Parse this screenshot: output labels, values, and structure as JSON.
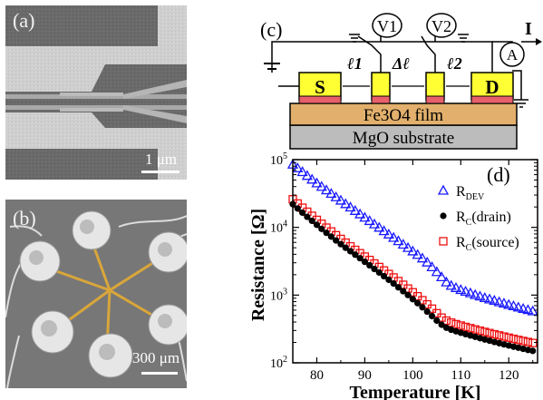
{
  "panels": {
    "a": {
      "label": "(a)",
      "scale_label": "1 μm"
    },
    "b": {
      "label": "(b)",
      "scale_label": "300 μm"
    },
    "c": {
      "label": "(c)",
      "voltmeter_1": "V1",
      "voltmeter_2": "V2",
      "ammeter": "A",
      "current_label": "I",
      "source_label": "S",
      "drain_label": "D",
      "l1_label": "ℓ1",
      "dl_label": "Δℓ",
      "l2_label": "ℓ2",
      "film_label": "Fe3O4 film",
      "substrate_label": "MgO substrate"
    },
    "d": {
      "label": "(d)"
    }
  },
  "chart_data": {
    "type": "scatter",
    "xlabel": "Temperature [K]",
    "ylabel": "Resistance [Ω]",
    "xlim": [
      75,
      126
    ],
    "ylim": [
      100,
      100000
    ],
    "yscale": "log",
    "x_ticks": [
      "80",
      "90",
      "100",
      "110",
      "120"
    ],
    "y_ticks": [
      "10^2",
      "10^3",
      "10^4",
      "10^5"
    ],
    "legend_position": "top-right",
    "series": [
      {
        "name": "R_DEV",
        "marker": "open-triangle",
        "color": "#1a1aff",
        "x": [
          75,
          76,
          77,
          78,
          79,
          80,
          81,
          82,
          83,
          84,
          85,
          86,
          87,
          88,
          89,
          90,
          91,
          92,
          93,
          94,
          95,
          96,
          97,
          98,
          99,
          100,
          101,
          102,
          103,
          104,
          105,
          106,
          107,
          108,
          109,
          110,
          111,
          112,
          113,
          114,
          115,
          116,
          117,
          118,
          119,
          120,
          121,
          122,
          123,
          124,
          125
        ],
        "y": [
          85000,
          75000,
          66000,
          58000,
          51000,
          45000,
          40000,
          35500,
          31500,
          28000,
          25000,
          22200,
          19800,
          17600,
          15700,
          14000,
          12500,
          11150,
          9950,
          8850,
          7900,
          7050,
          6300,
          5600,
          5000,
          4450,
          3950,
          3500,
          3050,
          2600,
          2200,
          1850,
          1550,
          1380,
          1280,
          1200,
          1130,
          1070,
          1010,
          960,
          910,
          870,
          830,
          790,
          755,
          720,
          690,
          660,
          630,
          605,
          580
        ]
      },
      {
        "name": "R_C(drain)",
        "marker": "filled-circle",
        "color": "#000000",
        "x": [
          75,
          76,
          77,
          78,
          79,
          80,
          81,
          82,
          83,
          84,
          85,
          86,
          87,
          88,
          89,
          90,
          91,
          92,
          93,
          94,
          95,
          96,
          97,
          98,
          99,
          100,
          101,
          102,
          103,
          104,
          105,
          106,
          107,
          108,
          109,
          110,
          111,
          112,
          113,
          114,
          115,
          116,
          117,
          118,
          119,
          120,
          121,
          122,
          123,
          124,
          125
        ],
        "y": [
          22000,
          19000,
          16500,
          14300,
          12500,
          10900,
          9500,
          8300,
          7300,
          6400,
          5650,
          5000,
          4450,
          3950,
          3500,
          3100,
          2750,
          2430,
          2150,
          1900,
          1680,
          1480,
          1300,
          1140,
          1000,
          870,
          760,
          660,
          570,
          490,
          420,
          365,
          330,
          308,
          292,
          278,
          265,
          253,
          242,
          231,
          221,
          212,
          203,
          195,
          187,
          180,
          173,
          167,
          161,
          155,
          150
        ]
      },
      {
        "name": "R_C(source)",
        "marker": "open-square",
        "color": "#ee1111",
        "x": [
          75,
          76,
          77,
          78,
          79,
          80,
          81,
          82,
          83,
          84,
          85,
          86,
          87,
          88,
          89,
          90,
          91,
          92,
          93,
          94,
          95,
          96,
          97,
          98,
          99,
          100,
          101,
          102,
          103,
          104,
          105,
          106,
          107,
          108,
          109,
          110,
          111,
          112,
          113,
          114,
          115,
          116,
          117,
          118,
          119,
          120,
          121,
          122,
          123,
          124,
          125
        ],
        "y": [
          26000,
          22500,
          19500,
          17000,
          14800,
          12900,
          11300,
          9900,
          8700,
          7650,
          6750,
          5950,
          5250,
          4650,
          4150,
          3700,
          3300,
          2930,
          2600,
          2310,
          2050,
          1820,
          1610,
          1420,
          1250,
          1100,
          960,
          840,
          730,
          630,
          540,
          465,
          420,
          393,
          372,
          355,
          339,
          325,
          311,
          298,
          286,
          275,
          264,
          254,
          244,
          235,
          226,
          218,
          210,
          203,
          196
        ]
      }
    ]
  }
}
